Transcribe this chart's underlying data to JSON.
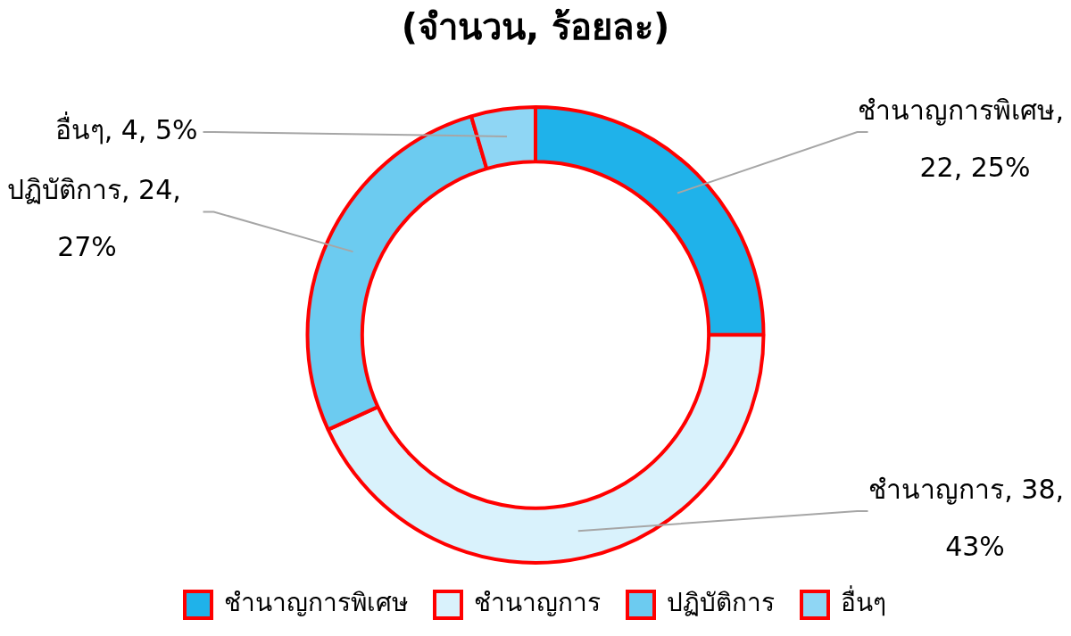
{
  "chart_data": {
    "type": "donut",
    "title": "(จำนวน, ร้อยละ)",
    "categories": [
      "ชำนาญการพิเศษ",
      "ชำนาญการ",
      "ปฏิบัติการ",
      "อื่นๆ"
    ],
    "values": [
      22,
      38,
      24,
      4
    ],
    "value_labels": [
      "ชำนาญการพิเศษ, 22, 25%",
      "ชำนาญการ, 38, 43%",
      "ปฏิบัติการ, 24, 27%",
      "อื่นๆ, 4, 5%"
    ],
    "colors": [
      "#1fb2ea",
      "#d9f2fc",
      "#6ccbf0",
      "#8fd6f4"
    ],
    "legend": "bottom"
  }
}
